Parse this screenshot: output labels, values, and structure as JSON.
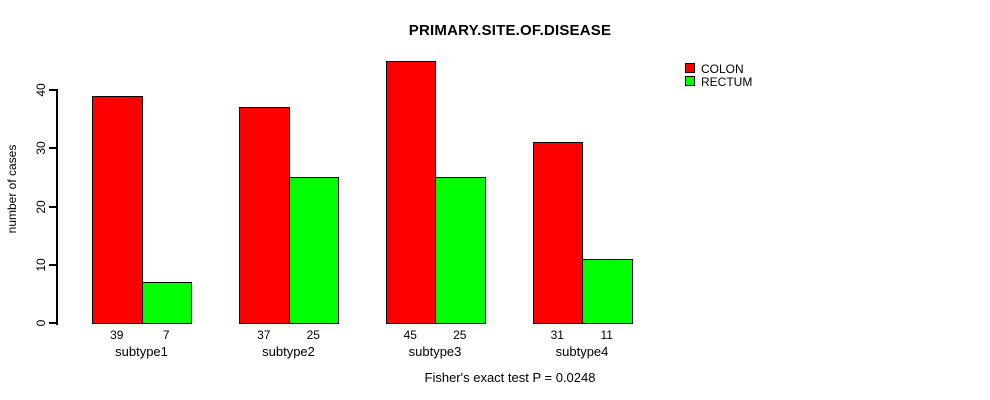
{
  "chart_data": {
    "type": "bar",
    "title": "PRIMARY.SITE.OF.DISEASE",
    "categories": [
      "subtype1",
      "subtype2",
      "subtype3",
      "subtype4"
    ],
    "series": [
      {
        "name": "COLON",
        "color": "#FF0000",
        "values": [
          39,
          37,
          45,
          31
        ]
      },
      {
        "name": "RECTUM",
        "color": "#00FF00",
        "values": [
          7,
          25,
          25,
          11
        ]
      }
    ],
    "xlabel": "",
    "ylabel": "number of cases",
    "yticks": [
      0,
      10,
      20,
      30,
      40
    ],
    "ylim": [
      0,
      45
    ],
    "grid": false,
    "legend_position": "top-right",
    "bar_value_labels": true,
    "annotation": "Fisher's exact test P = 0.0248",
    "axis_color": "#000000",
    "text_color": "#000000",
    "background_color": "#FFFFFF"
  }
}
